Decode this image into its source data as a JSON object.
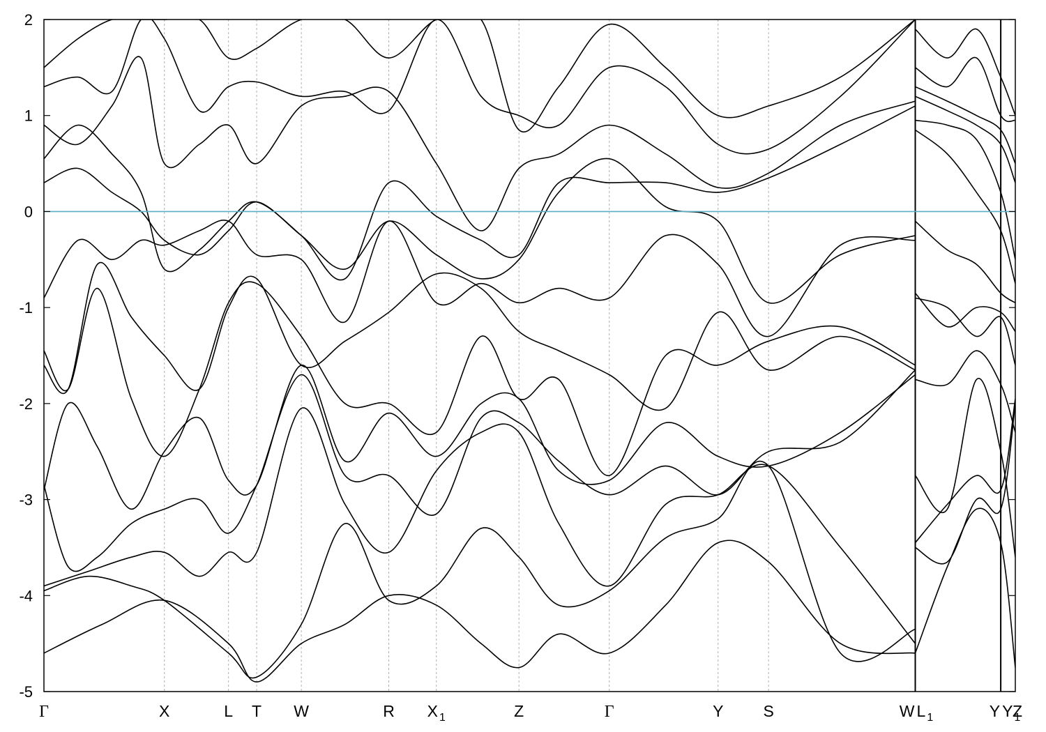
{
  "chart_data": {
    "type": "line",
    "title": "",
    "xlabel": "",
    "ylabel": "",
    "ylim": [
      -5,
      2
    ],
    "yticks": [
      -5,
      -4,
      -3,
      -2,
      -1,
      0,
      1,
      2
    ],
    "ytick_labels": [
      "-5",
      "-4",
      "-3",
      "-2",
      "-1",
      "0",
      "1",
      "2"
    ],
    "xlim": [
      0,
      10
    ],
    "kpoints": [
      {
        "label": "Γ",
        "sub": "",
        "x": 0.0
      },
      {
        "label": "X",
        "sub": "",
        "x": 1.24
      },
      {
        "label": "L",
        "sub": "",
        "x": 1.9
      },
      {
        "label": "T",
        "sub": "",
        "x": 2.19
      },
      {
        "label": "W",
        "sub": "",
        "x": 2.65
      },
      {
        "label": "R",
        "sub": "",
        "x": 3.55
      },
      {
        "label": "X",
        "sub": "1",
        "x": 4.04
      },
      {
        "label": "Z",
        "sub": "",
        "x": 4.89
      },
      {
        "label": "Γ",
        "sub": "",
        "x": 5.82
      },
      {
        "label": "Y",
        "sub": "",
        "x": 6.94
      },
      {
        "label": "S",
        "sub": "",
        "x": 7.46
      },
      {
        "label": "W",
        "sub": "",
        "x": 8.97
      },
      {
        "label": "L",
        "sub": "1",
        "x": 8.97
      },
      {
        "label": "Y",
        "sub": "",
        "x": 9.85
      },
      {
        "label": "Y",
        "sub": "1",
        "x": 9.85
      },
      {
        "label": "Z",
        "sub": "",
        "x": 10.0
      }
    ],
    "fermi_level": 0,
    "fermi_color": "#5aaec8",
    "band_color": "#000000",
    "grid_color": "#b0b0b0",
    "series": [
      {
        "x": [
          0,
          0.6,
          1.24,
          1.9,
          2.19,
          2.65,
          3.1,
          3.55,
          4.04,
          4.5,
          4.89,
          5.3,
          5.82,
          6.4,
          6.94,
          7.46,
          8.2,
          8.97
        ],
        "values": [
          -4.6,
          -4.3,
          -4.05,
          -4.5,
          -4.9,
          -4.5,
          -4.3,
          -4.0,
          -4.1,
          -4.5,
          -4.75,
          -4.4,
          -4.6,
          -4.1,
          -3.45,
          -3.65,
          -4.5,
          -4.6
        ]
      },
      {
        "x": [
          0,
          0.45,
          0.9,
          1.24,
          1.9,
          2.19,
          2.65,
          3.1,
          3.55,
          4.04,
          4.5,
          4.89,
          5.3,
          5.82,
          6.4,
          6.94,
          7.46,
          8.2,
          8.97
        ],
        "values": [
          -3.95,
          -3.8,
          -3.9,
          -4.05,
          -4.6,
          -4.85,
          -4.3,
          -3.25,
          -4.05,
          -3.9,
          -3.3,
          -3.6,
          -4.1,
          -3.95,
          -3.4,
          -3.2,
          -2.65,
          -4.6,
          -4.35
        ]
      },
      {
        "x": [
          0,
          0.45,
          0.9,
          1.24,
          1.6,
          1.9,
          2.19,
          2.65,
          3.1,
          3.55,
          4.04,
          4.5,
          4.89,
          5.3,
          5.82,
          6.4,
          6.94,
          7.46,
          8.2,
          8.97
        ],
        "values": [
          -3.9,
          -3.75,
          -3.6,
          -3.55,
          -3.8,
          -3.55,
          -3.55,
          -2.05,
          -3.05,
          -3.55,
          -2.7,
          -2.3,
          -2.3,
          -3.25,
          -3.9,
          -3.05,
          -2.95,
          -2.65,
          -3.5,
          -4.5
        ]
      },
      {
        "x": [
          0,
          0.25,
          0.55,
          0.9,
          1.24,
          1.6,
          1.9,
          2.19,
          2.65,
          3.1,
          3.55,
          4.04,
          4.5,
          4.89,
          5.3,
          5.82,
          6.4,
          6.94,
          7.46,
          8.2,
          8.97
        ],
        "values": [
          -2.85,
          -3.7,
          -3.6,
          -3.25,
          -3.1,
          -3.0,
          -3.35,
          -2.85,
          -1.7,
          -2.75,
          -2.75,
          -3.15,
          -2.15,
          -2.2,
          -2.6,
          -2.95,
          -2.65,
          -2.95,
          -2.5,
          -2.4,
          -1.65
        ]
      },
      {
        "x": [
          0,
          0.25,
          0.55,
          0.9,
          1.24,
          1.6,
          1.9,
          2.19,
          2.65,
          3.1,
          3.55,
          4.04,
          4.5,
          4.89,
          5.3,
          5.82,
          6.4,
          6.94,
          7.46,
          8.2,
          8.97
        ],
        "values": [
          -2.9,
          -2.0,
          -2.45,
          -3.1,
          -2.5,
          -2.15,
          -2.8,
          -2.85,
          -1.6,
          -2.6,
          -2.1,
          -2.55,
          -2.0,
          -1.95,
          -2.7,
          -2.8,
          -2.2,
          -2.55,
          -2.65,
          -2.3,
          -1.7
        ]
      },
      {
        "x": [
          0,
          0.25,
          0.55,
          0.9,
          1.24,
          1.6,
          1.9,
          2.19,
          2.65,
          3.1,
          3.55,
          4.04,
          4.5,
          4.89,
          5.3,
          5.82,
          6.4,
          6.94,
          7.46,
          8.2,
          8.97
        ],
        "values": [
          -1.45,
          -1.85,
          -0.8,
          -1.95,
          -2.55,
          -1.85,
          -0.95,
          -0.75,
          -1.3,
          -2.0,
          -2.0,
          -2.3,
          -1.3,
          -1.95,
          -1.75,
          -2.75,
          -1.5,
          -1.6,
          -1.35,
          -1.2,
          -1.6
        ]
      },
      {
        "x": [
          0,
          0.25,
          0.55,
          0.9,
          1.24,
          1.6,
          1.9,
          2.19,
          2.65,
          3.1,
          3.55,
          4.04,
          4.5,
          4.89,
          5.3,
          5.82,
          6.4,
          6.94,
          7.46,
          8.2,
          8.97
        ],
        "values": [
          -1.6,
          -1.85,
          -0.55,
          -1.1,
          -1.5,
          -1.85,
          -1.0,
          -0.7,
          -1.6,
          -1.35,
          -1.05,
          -0.65,
          -0.8,
          -1.25,
          -1.45,
          -1.7,
          -2.05,
          -1.05,
          -1.65,
          -1.3,
          -1.65
        ]
      },
      {
        "x": [
          0,
          0.35,
          0.7,
          1.0,
          1.24,
          1.6,
          1.9,
          2.19,
          2.65,
          3.1,
          3.55,
          4.04,
          4.5,
          4.89,
          5.3,
          5.82,
          6.4,
          6.94,
          7.46,
          8.2,
          8.97
        ],
        "values": [
          -0.9,
          -0.3,
          -0.5,
          -0.3,
          -0.35,
          -0.2,
          -0.1,
          -0.45,
          -0.5,
          -1.15,
          -0.1,
          -0.95,
          -0.75,
          -0.95,
          -0.8,
          -0.9,
          -0.25,
          -0.55,
          -1.3,
          -0.35,
          -0.3
        ]
      },
      {
        "x": [
          0,
          0.35,
          0.7,
          1.0,
          1.24,
          1.6,
          1.9,
          2.19,
          2.65,
          3.1,
          3.55,
          4.04,
          4.5,
          4.89,
          5.3,
          5.82,
          6.4,
          6.94,
          7.46,
          8.2,
          8.97
        ],
        "values": [
          0.3,
          0.45,
          0.2,
          0.0,
          -0.3,
          -0.45,
          -0.2,
          0.1,
          -0.25,
          -0.6,
          -0.1,
          -0.45,
          -0.7,
          -0.5,
          0.2,
          0.55,
          0.05,
          -0.1,
          -0.95,
          -0.45,
          -0.25
        ]
      },
      {
        "x": [
          0,
          0.35,
          0.7,
          1.0,
          1.24,
          1.6,
          1.9,
          2.19,
          2.65,
          3.1,
          3.55,
          4.04,
          4.5,
          4.89,
          5.3,
          5.82,
          6.4,
          6.94,
          7.46,
          8.2,
          8.97
        ],
        "values": [
          0.55,
          0.9,
          0.6,
          0.2,
          -0.6,
          -0.4,
          -0.1,
          0.1,
          -0.25,
          -0.7,
          0.3,
          -0.05,
          -0.3,
          -0.45,
          0.3,
          0.3,
          0.3,
          0.2,
          0.35,
          0.7,
          1.1
        ]
      },
      {
        "x": [
          0,
          0.35,
          0.7,
          1.0,
          1.24,
          1.6,
          1.9,
          2.19,
          2.65,
          3.1,
          3.55,
          4.04,
          4.5,
          4.89,
          5.3,
          5.82,
          6.4,
          6.94,
          7.46,
          8.2,
          8.97
        ],
        "values": [
          0.9,
          0.7,
          1.1,
          1.6,
          0.5,
          0.7,
          0.9,
          0.5,
          1.1,
          1.2,
          1.25,
          0.5,
          -0.2,
          0.45,
          0.6,
          0.9,
          0.6,
          0.25,
          0.4,
          0.9,
          1.15
        ]
      },
      {
        "x": [
          0,
          0.35,
          0.7,
          1.0,
          1.24,
          1.6,
          1.9,
          2.19,
          2.65,
          3.1,
          3.55,
          4.04,
          4.5,
          4.89,
          5.3,
          5.82,
          6.4,
          6.94,
          7.46,
          8.2,
          8.97
        ],
        "values": [
          1.3,
          1.4,
          1.25,
          2.0,
          1.8,
          1.05,
          1.3,
          1.35,
          1.2,
          1.25,
          1.05,
          2.0,
          1.2,
          1.0,
          0.9,
          1.5,
          1.3,
          0.7,
          0.65,
          1.2,
          2.0
        ]
      },
      {
        "x": [
          0,
          0.35,
          0.7,
          1.0,
          1.24,
          1.6,
          1.9,
          2.19,
          2.65,
          3.1,
          3.55,
          4.04,
          4.5,
          4.89,
          5.3,
          5.82,
          6.4,
          6.94,
          7.46,
          8.2,
          8.97
        ],
        "values": [
          1.5,
          1.8,
          2.0,
          2.0,
          2.0,
          2.0,
          1.6,
          1.7,
          2.0,
          2.0,
          1.6,
          2.0,
          2.0,
          0.85,
          1.3,
          1.95,
          1.5,
          1.0,
          1.1,
          1.4,
          2.0
        ]
      },
      {
        "x": [
          8.97,
          9.3,
          9.6,
          9.85,
          10.0
        ],
        "values": [
          -4.6,
          -3.7,
          -3.1,
          -3.45,
          -4.75
        ]
      },
      {
        "x": [
          8.97,
          9.3,
          9.6,
          9.85,
          10.0
        ],
        "values": [
          -3.5,
          -3.65,
          -3.0,
          -3.1,
          -2.0
        ]
      },
      {
        "x": [
          8.97,
          9.3,
          9.6,
          9.85,
          10.0
        ],
        "values": [
          -3.45,
          -3.05,
          -2.75,
          -2.9,
          -1.95
        ]
      },
      {
        "x": [
          8.97,
          9.3,
          9.6,
          9.85,
          10.0
        ],
        "values": [
          -2.75,
          -3.1,
          -1.75,
          -2.5,
          -3.6
        ]
      },
      {
        "x": [
          8.97,
          9.3,
          9.6,
          9.85,
          10.0
        ],
        "values": [
          -1.75,
          -1.8,
          -1.45,
          -1.8,
          -2.3
        ]
      },
      {
        "x": [
          8.97,
          9.3,
          9.6,
          9.85,
          10.0
        ],
        "values": [
          -0.9,
          -1.0,
          -1.3,
          -1.1,
          -1.6
        ]
      },
      {
        "x": [
          8.97,
          9.3,
          9.6,
          9.85,
          10.0
        ],
        "values": [
          -0.85,
          -1.2,
          -1.0,
          -1.05,
          -1.25
        ]
      },
      {
        "x": [
          8.97,
          9.3,
          9.6,
          9.85,
          10.0
        ],
        "values": [
          -0.1,
          -0.4,
          -0.55,
          -0.85,
          -0.95
        ]
      },
      {
        "x": [
          8.97,
          9.3,
          9.6,
          9.85,
          10.0
        ],
        "values": [
          0.85,
          0.6,
          0.2,
          -0.2,
          -0.75
        ]
      },
      {
        "x": [
          8.97,
          9.3,
          9.6,
          9.85,
          10.0
        ],
        "values": [
          0.95,
          0.9,
          0.75,
          0.2,
          -0.5
        ]
      },
      {
        "x": [
          8.97,
          9.3,
          9.6,
          9.85,
          10.0
        ],
        "values": [
          1.2,
          1.05,
          0.9,
          0.7,
          0.3
        ]
      },
      {
        "x": [
          8.97,
          9.3,
          9.6,
          9.85,
          10.0
        ],
        "values": [
          1.3,
          1.15,
          1.0,
          0.85,
          0.5
        ]
      },
      {
        "x": [
          8.97,
          9.3,
          9.6,
          9.85,
          10.0
        ],
        "values": [
          1.5,
          1.3,
          1.6,
          1.0,
          0.95
        ]
      },
      {
        "x": [
          8.97,
          9.3,
          9.6,
          9.85,
          10.0
        ],
        "values": [
          1.9,
          1.6,
          1.9,
          1.4,
          1.0
        ]
      }
    ]
  }
}
